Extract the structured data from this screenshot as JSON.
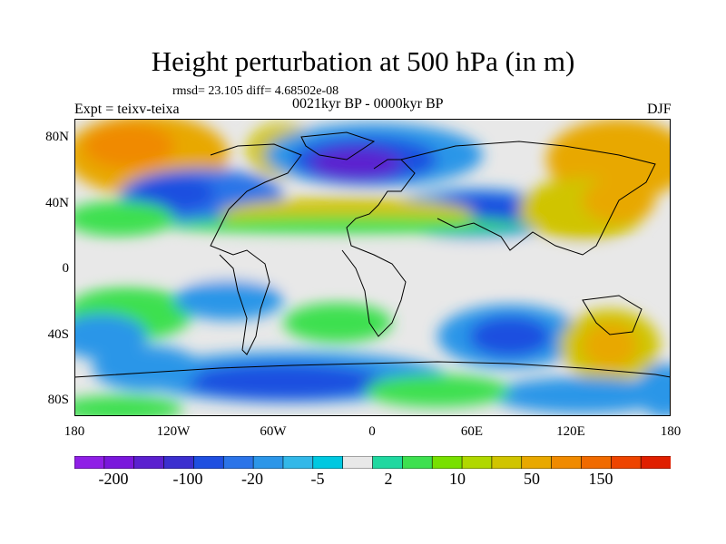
{
  "title": "Height perturbation at 500 hPa (in m)",
  "stats": "rmsd= 23.105 diff= 4.68502e-08",
  "expt": "Expt = teixv-teixa",
  "period": "0021kyr BP - 0000kyr BP",
  "season": "DJF",
  "map": {
    "projection": "cylindrical equidistant",
    "lon_range": [
      -180,
      180
    ],
    "lat_range": [
      -90,
      90
    ],
    "x_ticks": [
      "180",
      "120W",
      "60W",
      "0",
      "60E",
      "120E",
      "180"
    ],
    "y_ticks": [
      "80N",
      "40N",
      "0",
      "40S",
      "80S"
    ]
  },
  "colorbar": {
    "labels": [
      "-200",
      "-100",
      "-20",
      "-5",
      "2",
      "10",
      "50",
      "150"
    ],
    "colors": [
      "#8f1fe6",
      "#7a17dc",
      "#5b20cf",
      "#3b2fcf",
      "#1f4fe0",
      "#2b74e8",
      "#2c96e8",
      "#33b8e8",
      "#00c8e0",
      "#e8e8e8",
      "#20d8a0",
      "#3ee050",
      "#78e000",
      "#b0d800",
      "#d0c400",
      "#e8a800",
      "#f08a00",
      "#f06a00",
      "#ee4400",
      "#e01f00"
    ]
  }
}
